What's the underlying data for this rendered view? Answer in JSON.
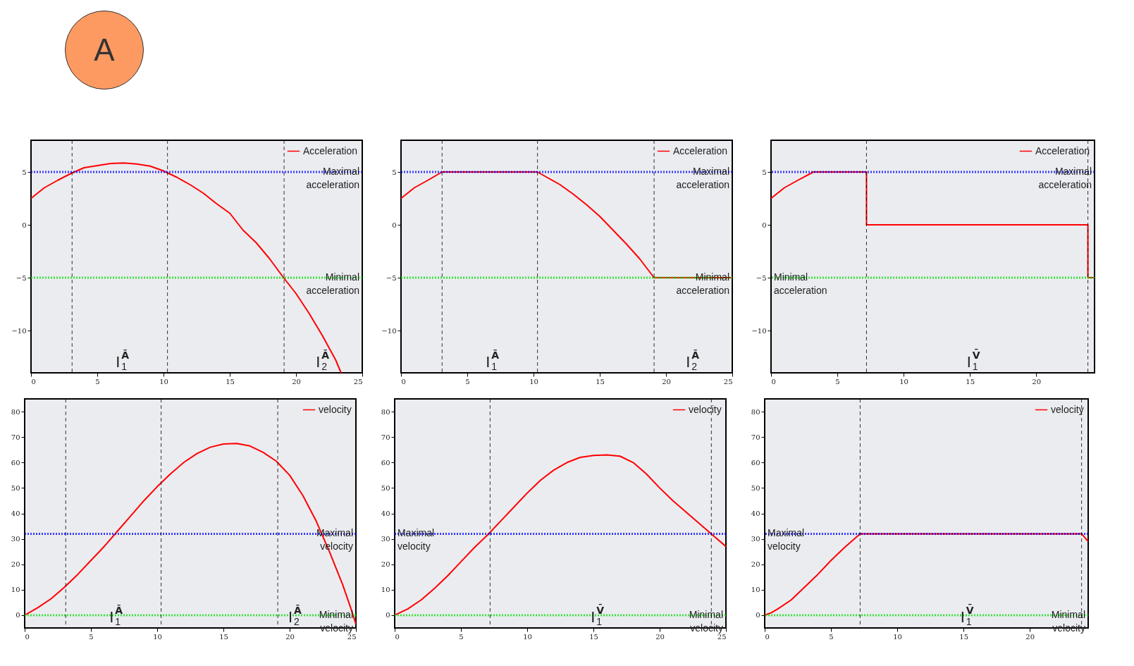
{
  "chart_data": [
    {
      "type": "line",
      "annotations": [
        "A",
        "I$_{1}$$^{Ā}$",
        "I$_{2}$$^{Ā}$"
      ],
      "legend": "top right",
      "xlim": [
        0,
        25
      ],
      "xticks": [
        0,
        5,
        10,
        15,
        20,
        25
      ],
      "ylim": [
        -14,
        8
      ],
      "yticks": [
        -10,
        -5,
        0,
        5
      ],
      "series": [
        {
          "name": "Acceleration",
          "color": "#ff0000",
          "x": [
            0,
            1,
            2,
            3,
            4,
            5,
            6,
            7,
            8,
            9,
            10,
            11,
            12,
            13,
            14,
            15,
            16,
            17,
            18,
            19,
            20,
            21,
            22,
            23,
            23.4
          ],
          "values": [
            2.5,
            3.5,
            4.2,
            4.85,
            5.4,
            5.6,
            5.8,
            5.85,
            5.75,
            5.55,
            5.1,
            4.5,
            3.8,
            3.0,
            2.0,
            1.1,
            -0.5,
            -1.7,
            -3.2,
            -4.9,
            -6.5,
            -8.4,
            -10.5,
            -12.8,
            -14
          ]
        }
      ],
      "ref_lines": [
        {
          "axis": "y",
          "value": 5,
          "label": "Maximal acceleration",
          "color": "#0000ff",
          "line_style": "dotted"
        },
        {
          "axis": "y",
          "value": -5,
          "label": "Minimal acceleration",
          "color": "#00e000",
          "line_style": "dotted"
        },
        {
          "axis": "x",
          "value": 3.1,
          "color": "#000000",
          "line_style": "dashed"
        },
        {
          "axis": "x",
          "value": 10.3,
          "color": "#000000",
          "line_style": "dashed"
        },
        {
          "axis": "x",
          "value": 19.1,
          "color": "#000000",
          "line_style": "dashed"
        }
      ]
    },
    {
      "type": "line",
      "annotations": [
        "I$_{1}$$^{Ā}$",
        "I$_{2}$$^{Ā}$"
      ],
      "legend": "top right",
      "xlim": [
        0,
        25
      ],
      "xticks": [
        0,
        5,
        10,
        15,
        20,
        25
      ],
      "ylim": [
        -14,
        8
      ],
      "yticks": [
        -10,
        -5,
        0,
        5
      ],
      "series": [
        {
          "name": "Acceleration",
          "color": "#ff0000",
          "x": [
            0,
            1,
            2,
            3.1,
            10.3,
            11,
            12,
            13,
            14,
            15,
            16,
            17,
            18,
            19.1,
            25
          ],
          "values": [
            2.5,
            3.5,
            4.2,
            5,
            5,
            4.5,
            3.8,
            2.9,
            1.9,
            0.8,
            -0.5,
            -1.8,
            -3.2,
            -5,
            -5
          ]
        }
      ],
      "ref_lines": [
        {
          "axis": "y",
          "value": 5,
          "label": "Maximal acceleration",
          "color": "#0000ff",
          "line_style": "dotted"
        },
        {
          "axis": "y",
          "value": -5,
          "label": "Minimal acceleration",
          "color": "#00e000",
          "line_style": "dotted"
        },
        {
          "axis": "x",
          "value": 3.1,
          "color": "#000000",
          "line_style": "dashed"
        },
        {
          "axis": "x",
          "value": 10.3,
          "color": "#000000",
          "line_style": "dashed"
        },
        {
          "axis": "x",
          "value": 19.1,
          "color": "#000000",
          "line_style": "dashed"
        }
      ]
    },
    {
      "type": "line",
      "annotations": [
        "I$_{1}$$^{V̄}$"
      ],
      "legend": "top right",
      "xlim": [
        0,
        24.4
      ],
      "xticks": [
        0,
        5,
        10,
        15,
        20
      ],
      "ylim": [
        -14,
        8
      ],
      "yticks": [
        -10,
        -5,
        0,
        5
      ],
      "series": [
        {
          "name": "Acceleration",
          "color": "#ff0000",
          "x": [
            0,
            1,
            2,
            3.2,
            7.2,
            7.2,
            23.9,
            23.9,
            24.4
          ],
          "values": [
            2.5,
            3.5,
            4.2,
            5,
            5,
            0,
            0,
            -5,
            -5
          ]
        }
      ],
      "ref_lines": [
        {
          "axis": "y",
          "value": 5,
          "label": "Maximal acceleration",
          "color": "#0000ff",
          "line_style": "dotted"
        },
        {
          "axis": "y",
          "value": -5,
          "label": "Minimal acceleration",
          "color": "#00e000",
          "line_style": "dotted"
        },
        {
          "axis": "x",
          "value": 7.2,
          "color": "#000000",
          "line_style": "dashed"
        },
        {
          "axis": "x",
          "value": 23.9,
          "color": "#000000",
          "line_style": "dashed"
        }
      ]
    },
    {
      "type": "line",
      "annotations": [
        "I$_{1}$$^{Ā}$",
        "I$_{2}$$^{Ā}$"
      ],
      "legend": "top right",
      "xlim": [
        0,
        25
      ],
      "xticks": [
        0,
        5,
        10,
        15,
        20,
        25
      ],
      "ylim": [
        -5,
        85
      ],
      "yticks": [
        0,
        10,
        20,
        30,
        40,
        50,
        60,
        70,
        80
      ],
      "series": [
        {
          "name": "velocity",
          "color": "#ff0000",
          "x": [
            0,
            1,
            2,
            3,
            4,
            5,
            6,
            7,
            8,
            9,
            10,
            11,
            12,
            13,
            14,
            15,
            16,
            17,
            18,
            19,
            20,
            21,
            22,
            23,
            24,
            24.6,
            25
          ],
          "values": [
            0,
            3,
            6.5,
            11,
            16,
            21.5,
            27,
            33,
            39,
            45,
            50.5,
            55.5,
            60,
            63.5,
            66,
            67.3,
            67.5,
            66.5,
            64,
            60.5,
            55,
            47,
            37,
            25,
            12,
            3,
            -3.5
          ]
        }
      ],
      "ref_lines": [
        {
          "axis": "y",
          "value": 32,
          "label": "Maximal velocity",
          "color": "#0000ff",
          "line_style": "dotted"
        },
        {
          "axis": "y",
          "value": 0,
          "label": "Minimal velocity",
          "color": "#00e000",
          "line_style": "dotted"
        },
        {
          "axis": "x",
          "value": 3.1,
          "color": "#000000",
          "line_style": "dashed"
        },
        {
          "axis": "x",
          "value": 10.3,
          "color": "#000000",
          "line_style": "dashed"
        },
        {
          "axis": "x",
          "value": 19.1,
          "color": "#000000",
          "line_style": "dashed"
        }
      ]
    },
    {
      "type": "line",
      "annotations": [
        "I$_{1}$$^{V̄}$"
      ],
      "legend": "top right",
      "xlim": [
        0,
        25
      ],
      "xticks": [
        0,
        5,
        10,
        15,
        20,
        25
      ],
      "ylim": [
        -5,
        85
      ],
      "yticks": [
        0,
        10,
        20,
        30,
        40,
        50,
        60,
        70,
        80
      ],
      "series": [
        {
          "name": "velocity",
          "color": "#ff0000",
          "x": [
            0,
            1,
            2,
            3,
            4,
            5,
            6,
            7,
            8,
            9,
            10,
            11,
            12,
            13,
            14,
            15,
            16,
            17,
            18,
            19,
            20,
            21,
            22,
            23,
            24,
            25
          ],
          "values": [
            0,
            2.5,
            6,
            10.5,
            15.5,
            21,
            26.5,
            31.5,
            37,
            42.5,
            48,
            53,
            57,
            60,
            62,
            62.8,
            63,
            62.5,
            60,
            55.5,
            50,
            45,
            40.5,
            36,
            31.5,
            27
          ]
        }
      ],
      "ref_lines": [
        {
          "axis": "y",
          "value": 32,
          "label": "Maximal velocity",
          "color": "#0000ff",
          "line_style": "dotted"
        },
        {
          "axis": "y",
          "value": 0,
          "label": "Minimal velocity",
          "color": "#00e000",
          "line_style": "dotted"
        },
        {
          "axis": "x",
          "value": 7.2,
          "color": "#000000",
          "line_style": "dashed"
        },
        {
          "axis": "x",
          "value": 23.9,
          "color": "#000000",
          "line_style": "dashed"
        }
      ]
    },
    {
      "type": "line",
      "annotations": [
        "I$_{1}$$^{V̄}$"
      ],
      "legend": "top right",
      "xlim": [
        0,
        24.4
      ],
      "xticks": [
        0,
        5,
        10,
        15,
        20
      ],
      "ylim": [
        -5,
        85
      ],
      "yticks": [
        0,
        10,
        20,
        30,
        40,
        50,
        60,
        70,
        80
      ],
      "series": [
        {
          "name": "velocity",
          "color": "#ff0000",
          "x": [
            0,
            0.5,
            1,
            2,
            3,
            4,
            5,
            6,
            7.2,
            23.9,
            24.4
          ],
          "values": [
            0,
            1,
            2.5,
            6,
            11,
            16,
            21.5,
            26.5,
            32,
            32,
            29
          ]
        }
      ],
      "ref_lines": [
        {
          "axis": "y",
          "value": 32,
          "label": "Maximal velocity",
          "color": "#0000ff",
          "line_style": "dotted"
        },
        {
          "axis": "y",
          "value": 0,
          "label": "Minimal velocity",
          "color": "#00e000",
          "line_style": "dotted"
        },
        {
          "axis": "x",
          "value": 7.2,
          "color": "#000000",
          "line_style": "dashed"
        },
        {
          "axis": "x",
          "value": 23.9,
          "color": "#000000",
          "line_style": "dashed"
        }
      ]
    }
  ]
}
